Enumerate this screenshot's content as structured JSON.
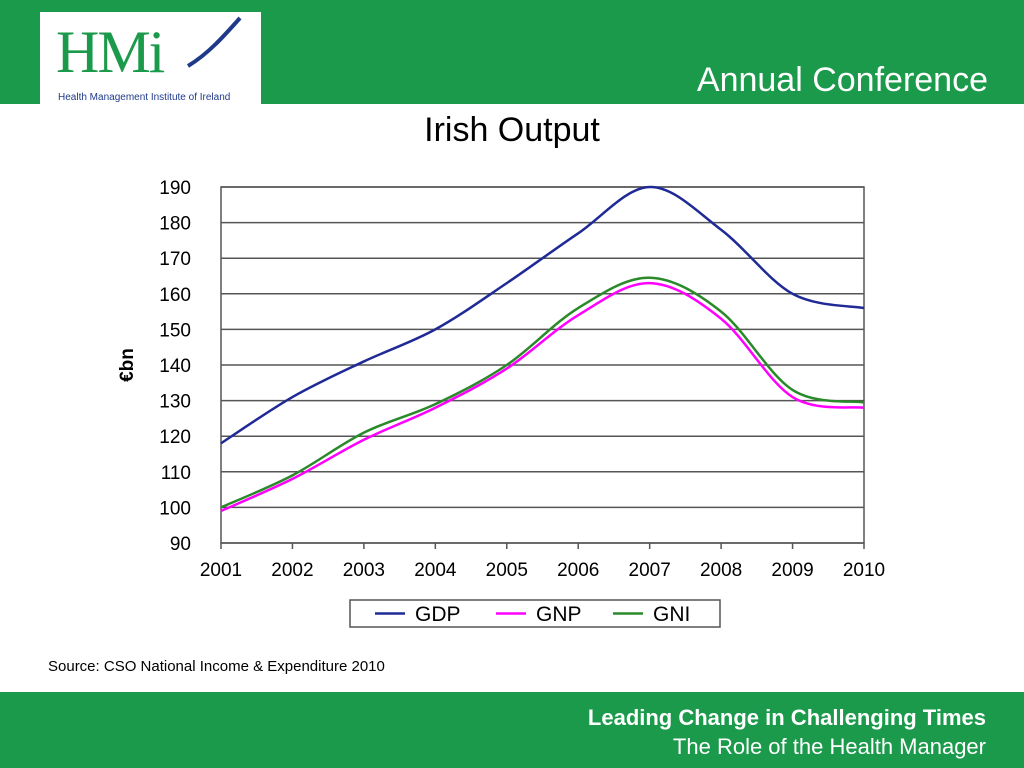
{
  "header": {
    "logo_letters": "HMi",
    "logo_subtitle": "Health Management Institute of Ireland",
    "conference": "Annual Conference"
  },
  "slide": {
    "title": "Irish Output",
    "source": "Source: CSO National Income & Expenditure 2010"
  },
  "footer": {
    "main": "Leading Change in Challenging Times",
    "sub": "The Role of the Health Manager"
  },
  "colors": {
    "band": "#1a9a4a",
    "gdp": "#1f2a96",
    "gnp": "#ff00ff",
    "gni": "#2a8a2a"
  },
  "chart_data": {
    "type": "line",
    "title": "",
    "xlabel": "",
    "ylabel": "€bn",
    "x": [
      "2001",
      "2002",
      "2003",
      "2004",
      "2005",
      "2006",
      "2007",
      "2008",
      "2009",
      "2010"
    ],
    "ylim": [
      90,
      190
    ],
    "yticks": [
      90,
      100,
      110,
      120,
      130,
      140,
      150,
      160,
      170,
      180,
      190
    ],
    "grid": true,
    "legend": "bottom",
    "series": [
      {
        "name": "GDP",
        "color": "#1f2a96",
        "values": [
          118,
          131,
          141,
          150,
          163,
          177,
          190,
          178,
          160,
          156
        ]
      },
      {
        "name": "GNP",
        "color": "#ff00ff",
        "values": [
          99,
          108,
          119,
          128,
          139,
          154,
          163,
          153,
          131,
          128
        ]
      },
      {
        "name": "GNI",
        "color": "#2a8a2a",
        "values": [
          100,
          109,
          121,
          129,
          140,
          156,
          164.5,
          155,
          133,
          129.5
        ]
      }
    ]
  }
}
